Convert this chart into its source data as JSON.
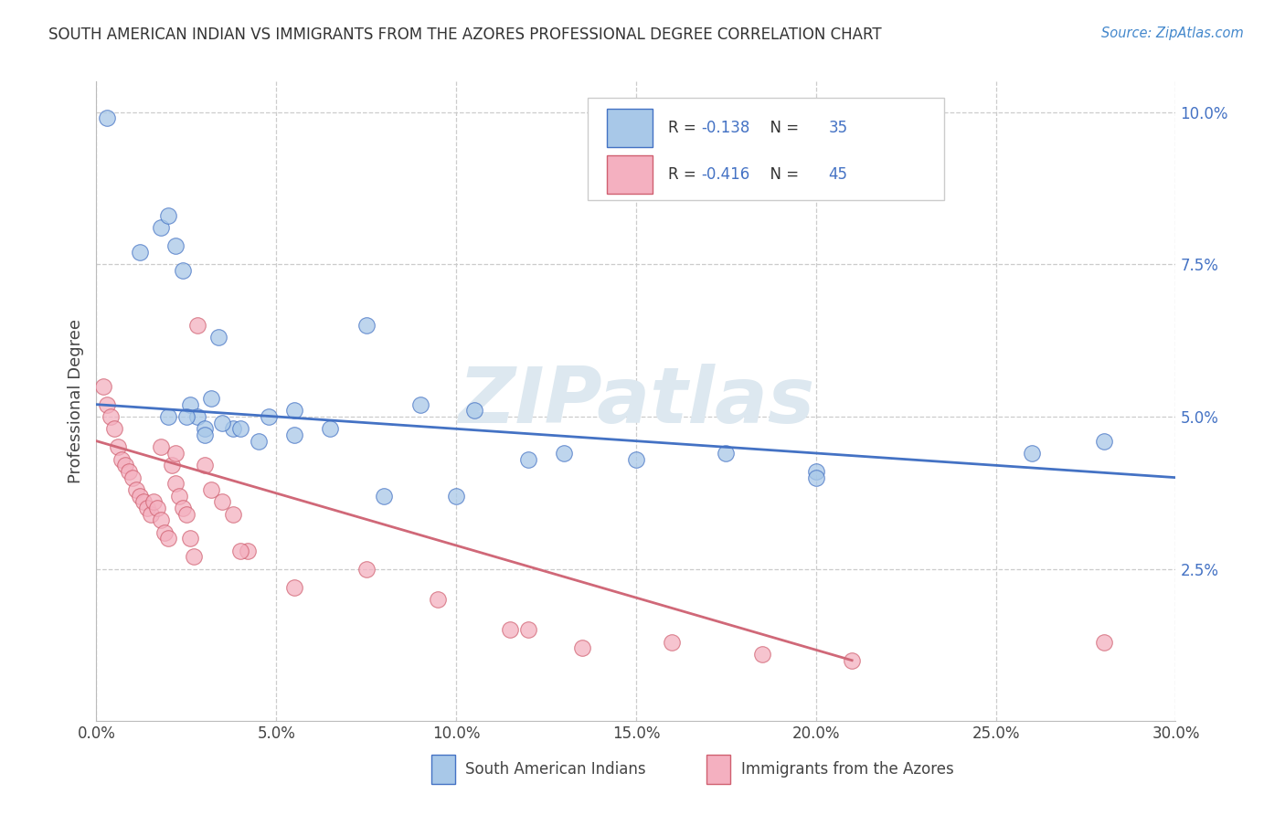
{
  "title": "SOUTH AMERICAN INDIAN VS IMMIGRANTS FROM THE AZORES PROFESSIONAL DEGREE CORRELATION CHART",
  "source_text": "Source: ZipAtlas.com",
  "ylabel": "Professional Degree",
  "xlim": [
    0.0,
    0.3
  ],
  "ylim": [
    0.0,
    0.105
  ],
  "xtick_labels": [
    "0.0%",
    "5.0%",
    "10.0%",
    "15.0%",
    "20.0%",
    "25.0%",
    "30.0%"
  ],
  "xtick_vals": [
    0.0,
    0.05,
    0.1,
    0.15,
    0.2,
    0.25,
    0.3
  ],
  "ytick_labels": [
    "2.5%",
    "5.0%",
    "7.5%",
    "10.0%"
  ],
  "ytick_vals": [
    0.025,
    0.05,
    0.075,
    0.1
  ],
  "blue_fill": "#a8c8e8",
  "blue_edge": "#4472c4",
  "pink_fill": "#f4b0c0",
  "pink_edge": "#d06070",
  "line_blue": "#4472c4",
  "line_pink": "#d06878",
  "legend_label_blue": "South American Indians",
  "legend_label_pink": "Immigrants from the Azores",
  "r_blue": -0.138,
  "n_blue": 35,
  "r_pink": -0.416,
  "n_pink": 45,
  "blue_scatter_x": [
    0.003,
    0.012,
    0.018,
    0.02,
    0.022,
    0.024,
    0.026,
    0.028,
    0.03,
    0.032,
    0.034,
    0.038,
    0.045,
    0.055,
    0.075,
    0.09,
    0.105,
    0.13,
    0.175,
    0.2,
    0.02,
    0.025,
    0.03,
    0.035,
    0.04,
    0.048,
    0.055,
    0.065,
    0.08,
    0.1,
    0.12,
    0.15,
    0.2,
    0.26,
    0.28
  ],
  "blue_scatter_y": [
    0.099,
    0.077,
    0.081,
    0.083,
    0.078,
    0.074,
    0.052,
    0.05,
    0.048,
    0.053,
    0.063,
    0.048,
    0.046,
    0.051,
    0.065,
    0.052,
    0.051,
    0.044,
    0.044,
    0.041,
    0.05,
    0.05,
    0.047,
    0.049,
    0.048,
    0.05,
    0.047,
    0.048,
    0.037,
    0.037,
    0.043,
    0.043,
    0.04,
    0.044,
    0.046
  ],
  "pink_scatter_x": [
    0.002,
    0.003,
    0.004,
    0.005,
    0.006,
    0.007,
    0.008,
    0.009,
    0.01,
    0.011,
    0.012,
    0.013,
    0.014,
    0.015,
    0.016,
    0.017,
    0.018,
    0.019,
    0.02,
    0.021,
    0.022,
    0.023,
    0.024,
    0.025,
    0.026,
    0.027,
    0.028,
    0.03,
    0.032,
    0.035,
    0.038,
    0.042,
    0.055,
    0.075,
    0.095,
    0.115,
    0.135,
    0.16,
    0.185,
    0.21,
    0.018,
    0.022,
    0.04,
    0.12,
    0.28
  ],
  "pink_scatter_y": [
    0.055,
    0.052,
    0.05,
    0.048,
    0.045,
    0.043,
    0.042,
    0.041,
    0.04,
    0.038,
    0.037,
    0.036,
    0.035,
    0.034,
    0.036,
    0.035,
    0.033,
    0.031,
    0.03,
    0.042,
    0.039,
    0.037,
    0.035,
    0.034,
    0.03,
    0.027,
    0.065,
    0.042,
    0.038,
    0.036,
    0.034,
    0.028,
    0.022,
    0.025,
    0.02,
    0.015,
    0.012,
    0.013,
    0.011,
    0.01,
    0.045,
    0.044,
    0.028,
    0.015,
    0.013
  ],
  "blue_line_x0": 0.0,
  "blue_line_x1": 0.3,
  "blue_line_y0": 0.052,
  "blue_line_y1": 0.04,
  "pink_line_x0": 0.0,
  "pink_line_x1": 0.21,
  "pink_line_y0": 0.046,
  "pink_line_y1": 0.01
}
